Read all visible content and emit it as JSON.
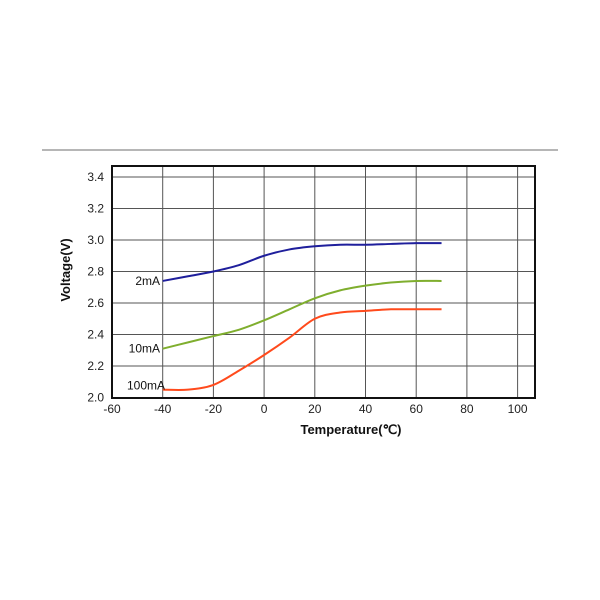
{
  "chart_data": {
    "type": "line",
    "title": "",
    "xlabel": "Temperature(℃)",
    "ylabel": "Voltage(V)",
    "xlim": [
      -60,
      107
    ],
    "ylim": [
      2.0,
      3.47
    ],
    "x_ticks": [
      -60,
      -40,
      -20,
      0,
      20,
      40,
      60,
      80,
      100
    ],
    "x_tick_labels": [
      "-60",
      "-40",
      "-20",
      "0",
      "20",
      "40",
      "60",
      "80",
      "100"
    ],
    "y_ticks": [
      2.0,
      2.2,
      2.4,
      2.6,
      2.8,
      3.0,
      3.2,
      3.4
    ],
    "y_tick_labels": [
      "2.0",
      "2.2",
      "2.4",
      "2.6",
      "2.8",
      "3.0",
      "3.2",
      "3.4"
    ],
    "grid": true,
    "legend_position": "inline-left",
    "x": [
      -40,
      -30,
      -20,
      -10,
      0,
      10,
      20,
      30,
      40,
      50,
      60,
      70
    ],
    "series": [
      {
        "name": "2mA",
        "color": "#1f1f9c",
        "values": [
          2.74,
          2.77,
          2.8,
          2.84,
          2.9,
          2.94,
          2.96,
          2.97,
          2.97,
          2.975,
          2.98,
          2.98
        ]
      },
      {
        "name": "10mA",
        "color": "#7fae2e",
        "values": [
          2.31,
          2.35,
          2.39,
          2.43,
          2.49,
          2.56,
          2.63,
          2.68,
          2.71,
          2.73,
          2.74,
          2.74
        ]
      },
      {
        "name": "100mA",
        "color": "#ff4a1c",
        "values": [
          2.05,
          2.05,
          2.08,
          2.17,
          2.27,
          2.38,
          2.5,
          2.54,
          2.55,
          2.56,
          2.56,
          2.56
        ]
      }
    ]
  },
  "separator": {
    "visible": true
  }
}
